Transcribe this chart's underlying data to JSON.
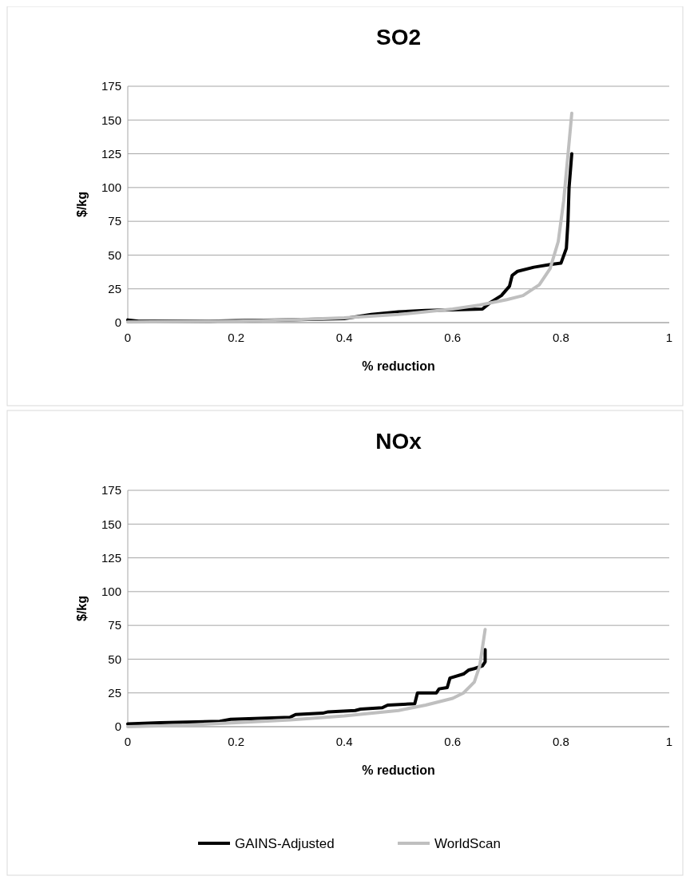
{
  "chart_data": [
    {
      "type": "line",
      "title": "SO2",
      "xlabel": "% reduction",
      "ylabel": "$/kg",
      "xlim": [
        0,
        1
      ],
      "xticks": [
        0,
        0.2,
        0.4,
        0.6,
        0.8,
        1
      ],
      "ylim": [
        0,
        175
      ],
      "yticks": [
        0,
        25,
        50,
        75,
        100,
        125,
        150,
        175
      ],
      "grid": "y",
      "legend": false,
      "series": [
        {
          "color": "#000000",
          "x": [
            0,
            0.02,
            0.15,
            0.2,
            0.3,
            0.4,
            0.45,
            0.5,
            0.55,
            0.6,
            0.655,
            0.67,
            0.69,
            0.705,
            0.71,
            0.72,
            0.75,
            0.78,
            0.8,
            0.81,
            0.813,
            0.815,
            0.82
          ],
          "values": [
            2,
            1,
            1,
            1.5,
            2,
            3,
            6,
            8,
            9,
            9.5,
            10,
            15,
            20,
            27,
            35,
            38,
            41,
            43,
            44,
            55,
            75,
            100,
            125
          ]
        },
        {
          "color": "#bfbfbf",
          "x": [
            0,
            0.2,
            0.3,
            0.4,
            0.5,
            0.6,
            0.65,
            0.7,
            0.73,
            0.76,
            0.78,
            0.795,
            0.805,
            0.812,
            0.82
          ],
          "values": [
            0.5,
            1,
            2,
            3.5,
            6,
            10,
            13,
            17,
            20,
            28,
            40,
            60,
            90,
            120,
            155
          ]
        }
      ]
    },
    {
      "type": "line",
      "title": "NOx",
      "xlabel": "% reduction",
      "ylabel": "$/kg",
      "xlim": [
        0,
        1
      ],
      "xticks": [
        0,
        0.2,
        0.4,
        0.6,
        0.8,
        1
      ],
      "ylim": [
        0,
        175
      ],
      "yticks": [
        0,
        25,
        50,
        75,
        100,
        125,
        150,
        175
      ],
      "grid": "y",
      "legend": "bottom",
      "series": [
        {
          "name": "GAINS-Adjusted",
          "color": "#000000",
          "x": [
            0,
            0.06,
            0.17,
            0.19,
            0.3,
            0.31,
            0.36,
            0.37,
            0.42,
            0.43,
            0.47,
            0.48,
            0.53,
            0.535,
            0.57,
            0.575,
            0.59,
            0.595,
            0.62,
            0.63,
            0.64,
            0.655,
            0.66,
            0.66
          ],
          "values": [
            2,
            3,
            4,
            5.5,
            7,
            9,
            10,
            11,
            12,
            13,
            14,
            16,
            17,
            25,
            25,
            28,
            29,
            36,
            39,
            42,
            43,
            45,
            48,
            57
          ]
        },
        {
          "name": "WorldScan",
          "color": "#bfbfbf",
          "x": [
            0,
            0.1,
            0.2,
            0.3,
            0.4,
            0.5,
            0.55,
            0.6,
            0.62,
            0.64,
            0.65,
            0.66
          ],
          "values": [
            0,
            1,
            3,
            5,
            8,
            12,
            16,
            21,
            25,
            33,
            45,
            72
          ]
        }
      ]
    }
  ]
}
